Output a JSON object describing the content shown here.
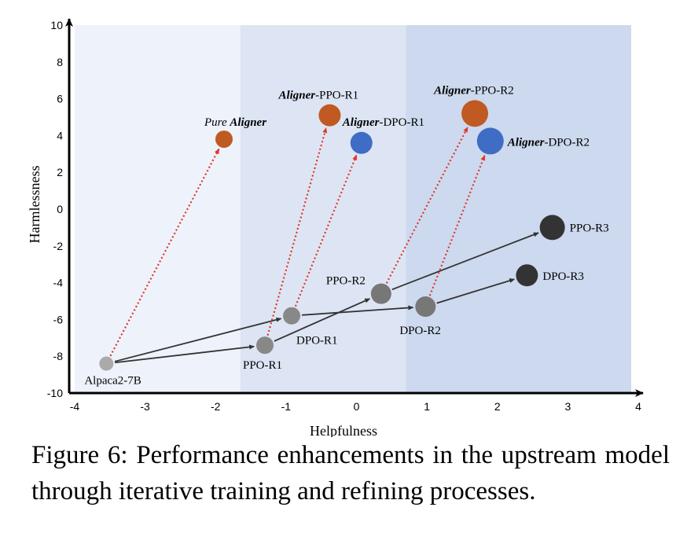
{
  "chart_data": {
    "type": "scatter",
    "xlabel": "Helpfulness",
    "ylabel": "Harmlessness",
    "xlim": [
      -4,
      4
    ],
    "ylim": [
      -10,
      10
    ],
    "xticks": [
      "-4",
      "-3",
      "-2",
      "-1",
      "0",
      "1",
      "2",
      "3",
      "4"
    ],
    "yticks": [
      "-10",
      "-8",
      "-6",
      "-4",
      "-2",
      "0",
      "2",
      "4",
      "6",
      "8",
      "10"
    ],
    "regions": [
      {
        "x": [
          -4,
          -1.65
        ],
        "color": "#eef2fa"
      },
      {
        "x": [
          -1.65,
          0.7
        ],
        "color": "#dde5f4"
      },
      {
        "x": [
          0.7,
          3.9
        ],
        "color": "#ccd9ee"
      }
    ],
    "points": [
      {
        "id": "alpaca",
        "label": "Alpaca2-7B",
        "x": -3.55,
        "y": -8.4,
        "size": 9,
        "color": "#aaaaaa"
      },
      {
        "id": "ppo_r1",
        "label": "PPO-R1",
        "x": -1.3,
        "y": -7.4,
        "size": 11,
        "color": "#888888"
      },
      {
        "id": "dpo_r1",
        "label": "DPO-R1",
        "x": -0.92,
        "y": -5.8,
        "size": 11,
        "color": "#888888"
      },
      {
        "id": "ppo_r2",
        "label": "PPO-R2",
        "x": 0.35,
        "y": -4.6,
        "size": 13,
        "color": "#777777"
      },
      {
        "id": "dpo_r2",
        "label": "DPO-R2",
        "x": 0.98,
        "y": -5.3,
        "size": 13,
        "color": "#777777"
      },
      {
        "id": "ppo_r3",
        "label": "PPO-R3",
        "x": 2.78,
        "y": -1.0,
        "size": 16,
        "color": "#333333"
      },
      {
        "id": "dpo_r3",
        "label": "DPO-R3",
        "x": 2.42,
        "y": -3.6,
        "size": 14,
        "color": "#333333"
      },
      {
        "id": "pure_aligner",
        "label_prefix": "Pure ",
        "label_bold": "Aligner",
        "label_suffix": "",
        "x": -1.88,
        "y": 3.8,
        "size": 11,
        "color": "#c05a22"
      },
      {
        "id": "aligner_ppo_r1",
        "label_prefix": "",
        "label_bold": "Aligner",
        "label_suffix": "-PPO-R1",
        "x": -0.38,
        "y": 5.1,
        "size": 14,
        "color": "#c05a22"
      },
      {
        "id": "aligner_dpo_r1",
        "label_prefix": "",
        "label_bold": "Aligner",
        "label_suffix": "-DPO-R1",
        "x": 0.07,
        "y": 3.6,
        "size": 14,
        "color": "#3f6cc4"
      },
      {
        "id": "aligner_ppo_r2",
        "label_prefix": "",
        "label_bold": "Aligner",
        "label_suffix": "-PPO-R2",
        "x": 1.68,
        "y": 5.2,
        "size": 17,
        "color": "#c05a22"
      },
      {
        "id": "aligner_dpo_r2",
        "label_prefix": "",
        "label_bold": "Aligner",
        "label_suffix": "-DPO-R2",
        "x": 1.9,
        "y": 3.7,
        "size": 17,
        "color": "#3f6cc4"
      }
    ],
    "training_arrows": [
      {
        "from": "alpaca",
        "to": "ppo_r1"
      },
      {
        "from": "alpaca",
        "to": "dpo_r1"
      },
      {
        "from": "ppo_r1",
        "to": "ppo_r2"
      },
      {
        "from": "dpo_r1",
        "to": "dpo_r2"
      },
      {
        "from": "ppo_r2",
        "to": "ppo_r3"
      },
      {
        "from": "dpo_r2",
        "to": "dpo_r3"
      }
    ],
    "aligner_arrows": [
      {
        "from": "alpaca",
        "to": "pure_aligner"
      },
      {
        "from": "ppo_r1",
        "to": "aligner_ppo_r1"
      },
      {
        "from": "dpo_r1",
        "to": "aligner_dpo_r1"
      },
      {
        "from": "ppo_r2",
        "to": "aligner_ppo_r2"
      },
      {
        "from": "dpo_r2",
        "to": "aligner_dpo_r2"
      }
    ],
    "colors": {
      "training_arrow": "#333333",
      "aligner_arrow": "#e0362b"
    }
  },
  "caption": "Figure 6: Performance enhancements in the upstream model through iterative training and refining processes."
}
